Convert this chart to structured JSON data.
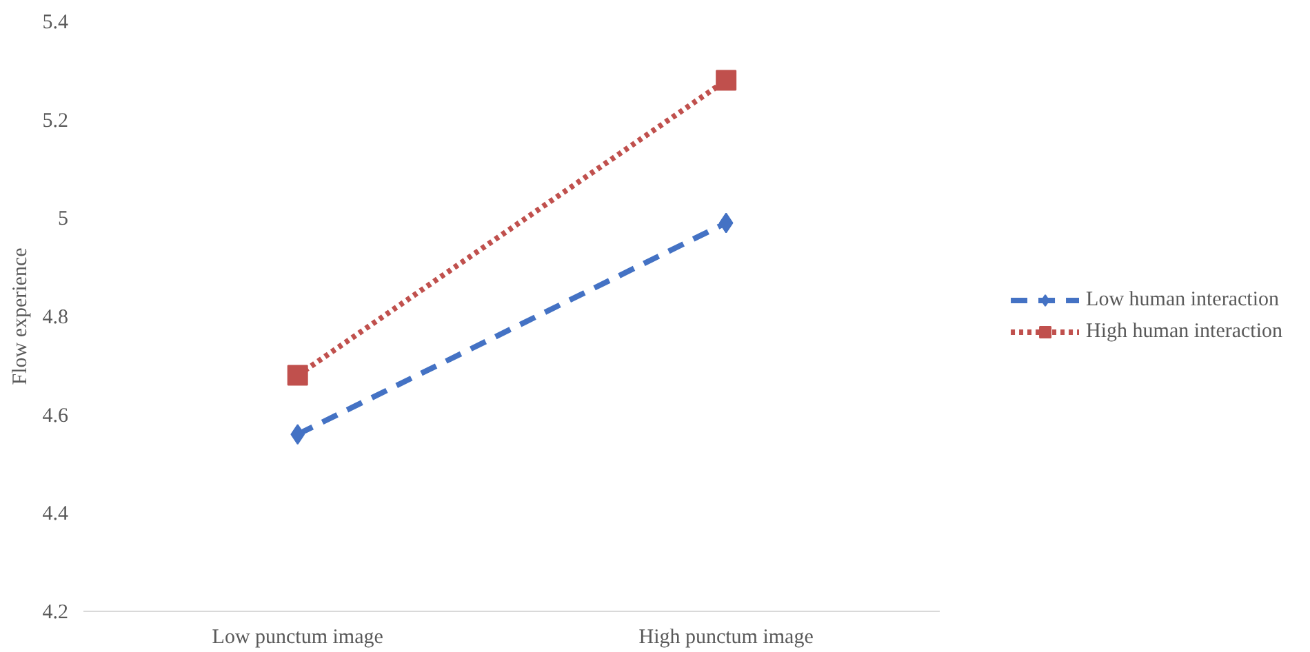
{
  "chart_data": {
    "type": "line",
    "ylabel": "Flow experience",
    "categories": [
      "Low punctum image",
      "High punctum image"
    ],
    "series": [
      {
        "name": "Low human interaction",
        "color": "#4472c4",
        "values": [
          4.56,
          4.99
        ],
        "marker": "diamond",
        "line_style": "dashed"
      },
      {
        "name": "High human interaction",
        "color": "#c0504d",
        "values": [
          4.68,
          5.28
        ],
        "marker": "square",
        "line_style": "dotted"
      }
    ],
    "ylim": [
      4.2,
      5.4
    ],
    "yticks": [
      4.2,
      4.4,
      4.6,
      4.8,
      5,
      5.2,
      5.4
    ],
    "grid": false,
    "legend": "right"
  }
}
